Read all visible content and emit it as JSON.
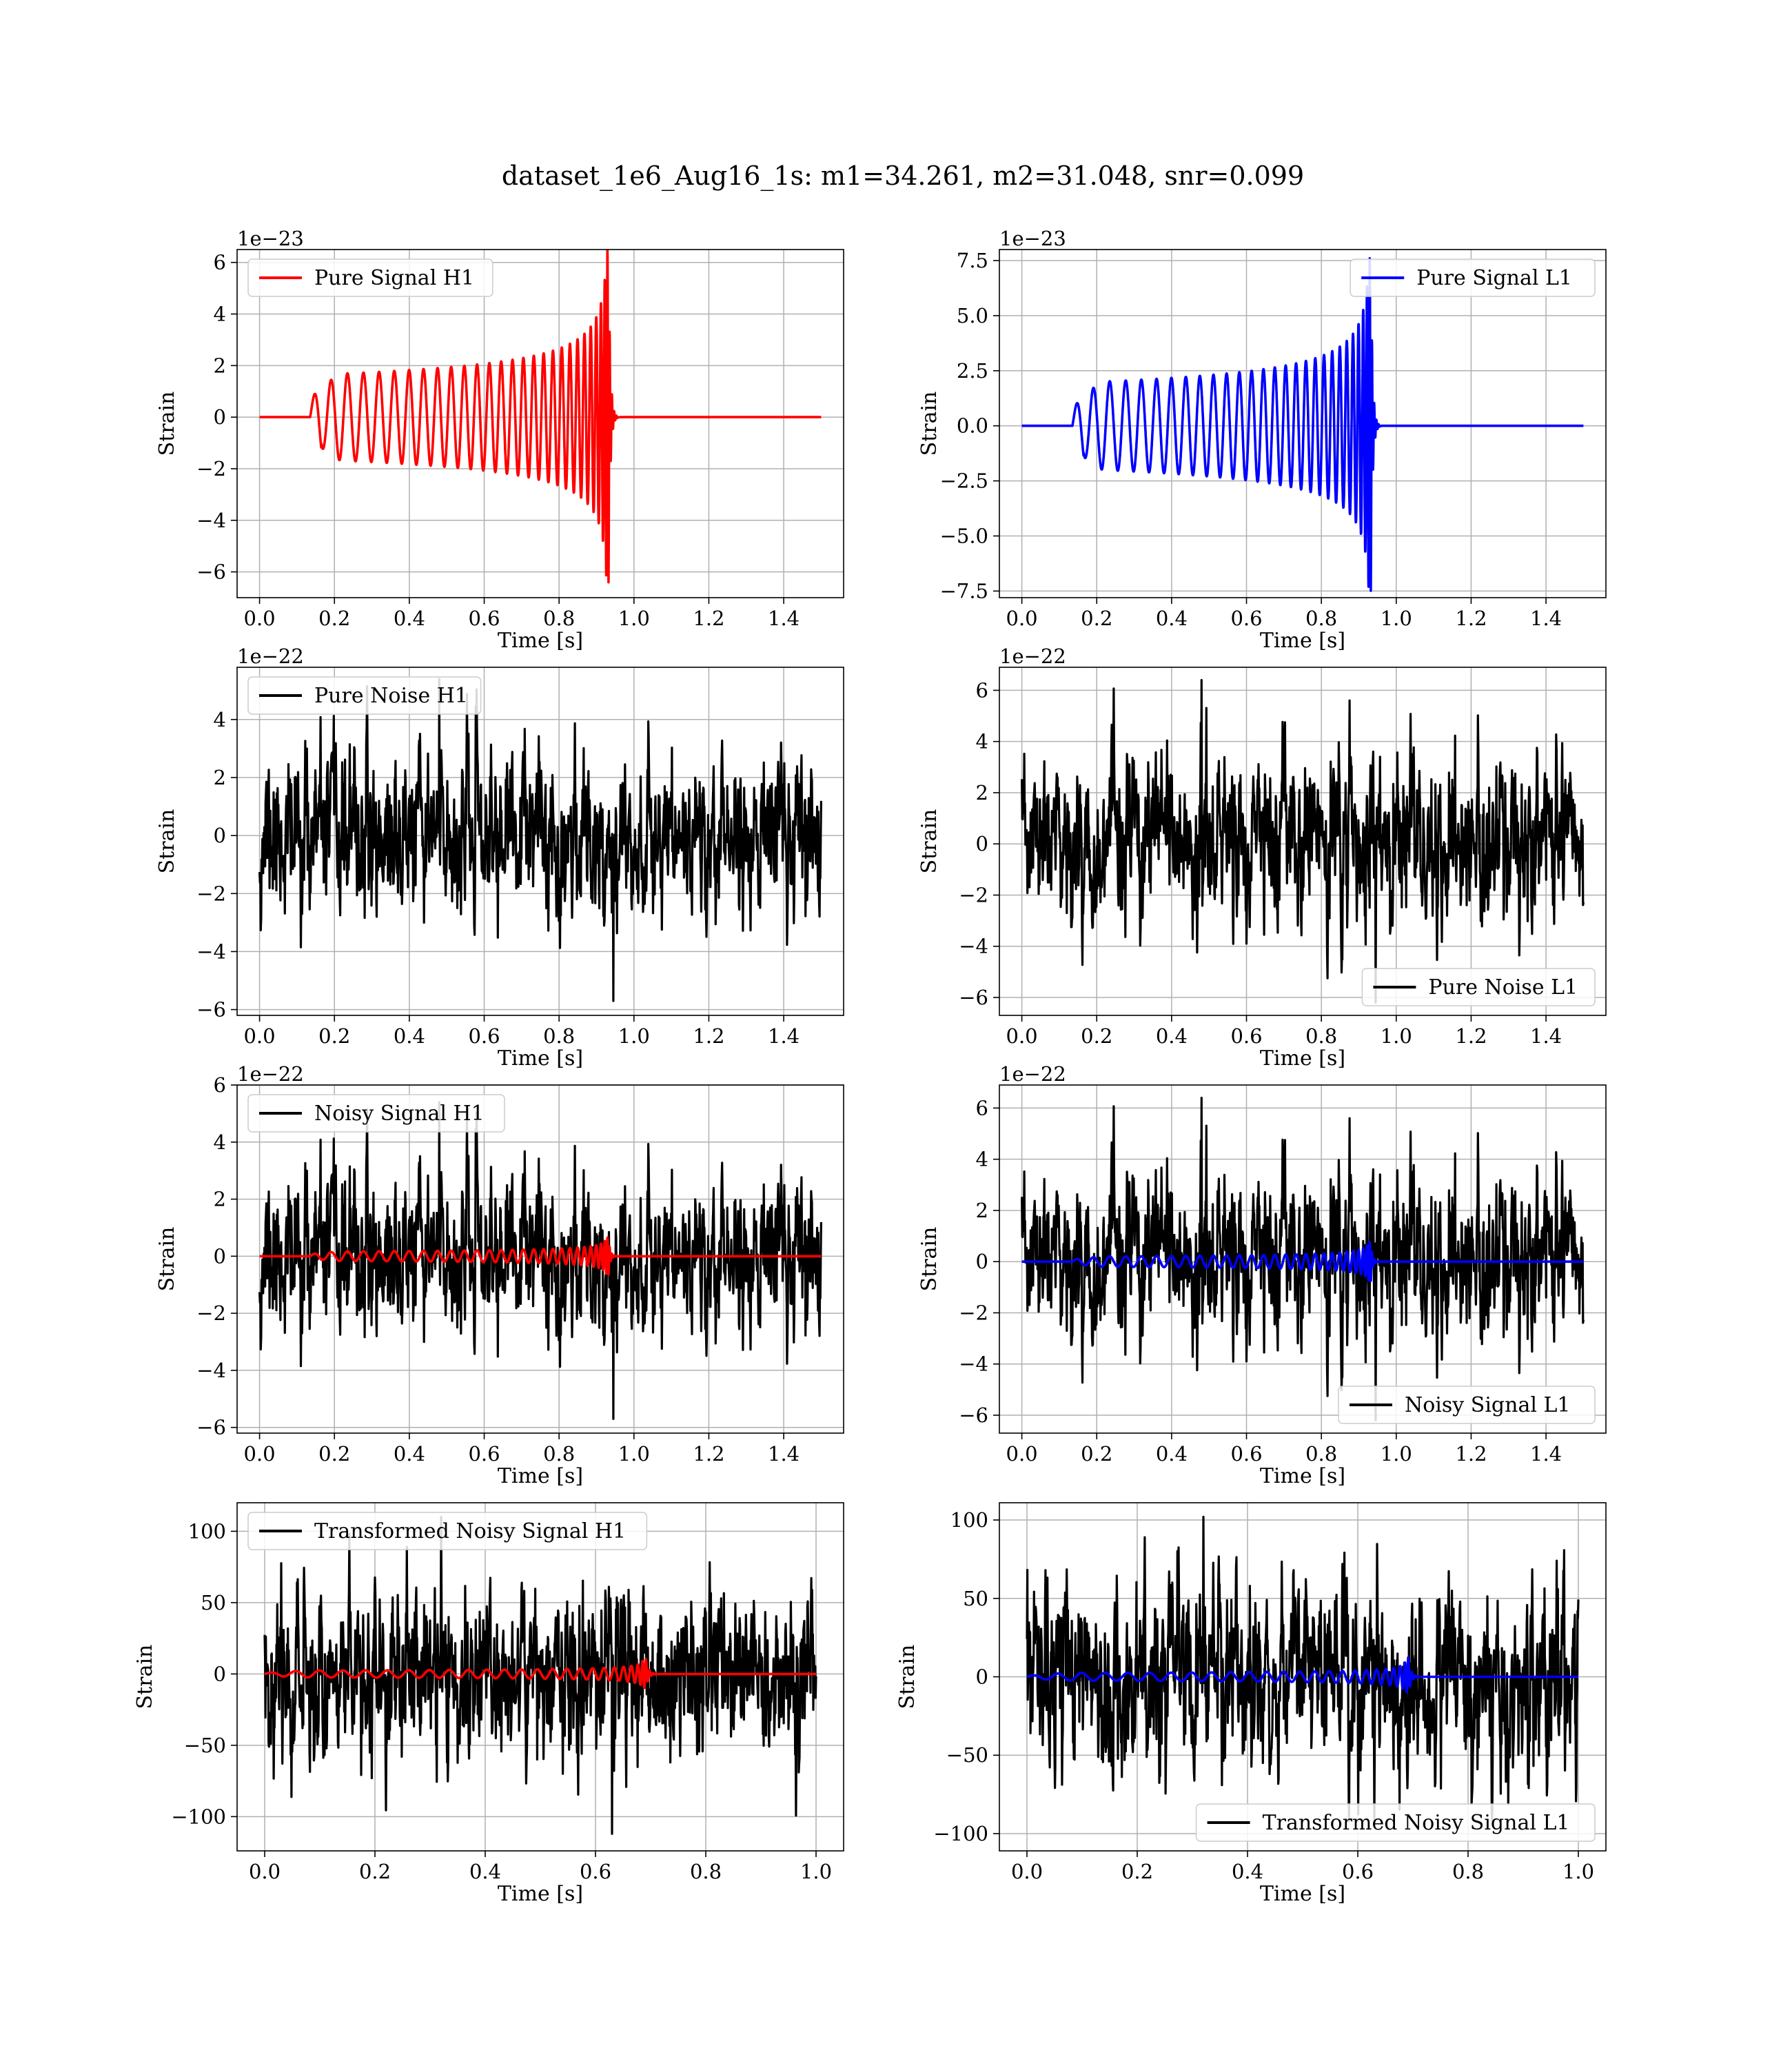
{
  "figure": {
    "title": "dataset_1e6_Aug16_1s: m1=34.261, m2=31.048, snr=0.099"
  },
  "colors": {
    "h1_signal": "#ff0000",
    "l1_signal": "#0000ff",
    "noise": "#000000",
    "grid": "#b0b0b0"
  },
  "chart_data": [
    {
      "type": "line",
      "id": "pure-signal-h1",
      "xlabel": "Time [s]",
      "ylabel": "Strain",
      "offset_text": "1e−23",
      "xlim": [
        -0.06,
        1.56
      ],
      "ylim": [
        -7.0,
        6.5
      ],
      "xticks": [
        0.0,
        0.2,
        0.4,
        0.6,
        0.8,
        1.0,
        1.2,
        1.4
      ],
      "xtick_labels": [
        "0.0",
        "0.2",
        "0.4",
        "0.6",
        "0.8",
        "1.0",
        "1.2",
        "1.4"
      ],
      "yticks": [
        -6,
        -4,
        -2,
        0,
        2,
        4,
        6
      ],
      "ytick_labels": [
        "−6",
        "−4",
        "−2",
        "0",
        "2",
        "4",
        "6"
      ],
      "grid": true,
      "legend_position": "upper-left",
      "series": [
        {
          "name": "Pure Signal H1",
          "color": "#ff0000",
          "kind": "chirp",
          "t0": 0.135,
          "tm": 0.932,
          "t_end": 1.5,
          "start_amp": 1.4,
          "mid_amp": 2.1,
          "peak_amp": 6.5,
          "peak_values": [
            1.4,
            1.7,
            1.9,
            2.0,
            2.05,
            2.1,
            2.1,
            2.1,
            2.1,
            2.15,
            2.2,
            2.3,
            2.4,
            2.5,
            2.6,
            2.8,
            3.0,
            3.3,
            3.8,
            4.5,
            5.8,
            6.0
          ],
          "trough_values": [
            -1.3,
            -1.6,
            -1.8,
            -1.9,
            -2.0,
            -2.0,
            -2.0,
            -2.05,
            -2.1,
            -2.15,
            -2.2,
            -2.3,
            -2.4,
            -2.6,
            -2.8,
            -3.0,
            -3.3,
            -3.8,
            -4.5,
            -5.2,
            -6.5
          ]
        }
      ]
    },
    {
      "type": "line",
      "id": "pure-signal-l1",
      "xlabel": "Time [s]",
      "ylabel": "Strain",
      "offset_text": "1e−23",
      "xlim": [
        -0.06,
        1.56
      ],
      "ylim": [
        -7.8,
        8.0
      ],
      "xticks": [
        0.0,
        0.2,
        0.4,
        0.6,
        0.8,
        1.0,
        1.2,
        1.4
      ],
      "xtick_labels": [
        "0.0",
        "0.2",
        "0.4",
        "0.6",
        "0.8",
        "1.0",
        "1.2",
        "1.4"
      ],
      "yticks": [
        -7.5,
        -5.0,
        -2.5,
        0.0,
        2.5,
        5.0,
        7.5
      ],
      "ytick_labels": [
        "−7.5",
        "−5.0",
        "−2.5",
        "0.0",
        "2.5",
        "5.0",
        "7.5"
      ],
      "grid": true,
      "legend_position": "upper-right",
      "series": [
        {
          "name": "Pure Signal L1",
          "color": "#0000ff",
          "kind": "chirp",
          "t0": 0.135,
          "tm": 0.932,
          "t_end": 1.5,
          "start_amp": 1.6,
          "mid_amp": 2.5,
          "peak_amp": 7.6,
          "peak_values": [
            1.6,
            2.0,
            2.3,
            2.4,
            2.5,
            2.5,
            2.5,
            2.5,
            2.5,
            2.6,
            2.7,
            2.7,
            2.8,
            2.9,
            3.0,
            3.2,
            3.5,
            3.9,
            4.5,
            5.5,
            7.6
          ],
          "trough_values": [
            -1.6,
            -2.0,
            -2.3,
            -2.4,
            -2.5,
            -2.5,
            -2.5,
            -2.5,
            -2.6,
            -2.6,
            -2.7,
            -2.8,
            -2.9,
            -3.1,
            -3.3,
            -3.6,
            -4.0,
            -4.7,
            -5.5,
            -7.0
          ]
        }
      ]
    },
    {
      "type": "line",
      "id": "pure-noise-h1",
      "xlabel": "Time [s]",
      "ylabel": "Strain",
      "offset_text": "1e−22",
      "xlim": [
        -0.06,
        1.56
      ],
      "ylim": [
        -6.2,
        5.8
      ],
      "xticks": [
        0.0,
        0.2,
        0.4,
        0.6,
        0.8,
        1.0,
        1.2,
        1.4
      ],
      "xtick_labels": [
        "0.0",
        "0.2",
        "0.4",
        "0.6",
        "0.8",
        "1.0",
        "1.2",
        "1.4"
      ],
      "yticks": [
        -6,
        -4,
        -2,
        0,
        2,
        4
      ],
      "ytick_labels": [
        "−6",
        "−4",
        "−2",
        "0",
        "2",
        "4"
      ],
      "grid": true,
      "legend_position": "upper-left",
      "series": [
        {
          "name": "Pure Noise H1",
          "color": "#000000",
          "kind": "noise",
          "t_end": 1.5,
          "sigma": 1.3,
          "max": 5.4,
          "min": -5.7,
          "seed": 11
        }
      ]
    },
    {
      "type": "line",
      "id": "pure-noise-l1",
      "xlabel": "Time [s]",
      "ylabel": "Strain",
      "offset_text": "1e−22",
      "xlim": [
        -0.06,
        1.56
      ],
      "ylim": [
        -6.7,
        6.9
      ],
      "xticks": [
        0.0,
        0.2,
        0.4,
        0.6,
        0.8,
        1.0,
        1.2,
        1.4
      ],
      "xtick_labels": [
        "0.0",
        "0.2",
        "0.4",
        "0.6",
        "0.8",
        "1.0",
        "1.2",
        "1.4"
      ],
      "yticks": [
        -6,
        -4,
        -2,
        0,
        2,
        4,
        6
      ],
      "ytick_labels": [
        "−6",
        "−4",
        "−2",
        "0",
        "2",
        "4",
        "6"
      ],
      "grid": true,
      "legend_position": "lower-right",
      "series": [
        {
          "name": "Pure Noise L1",
          "color": "#000000",
          "kind": "noise",
          "t_end": 1.5,
          "sigma": 1.5,
          "max": 6.4,
          "min": -6.2,
          "seed": 23
        }
      ]
    },
    {
      "type": "line",
      "id": "noisy-signal-h1",
      "xlabel": "Time [s]",
      "ylabel": "Strain",
      "offset_text": "1e−22",
      "xlim": [
        -0.06,
        1.56
      ],
      "ylim": [
        -6.2,
        6.0
      ],
      "xticks": [
        0.0,
        0.2,
        0.4,
        0.6,
        0.8,
        1.0,
        1.2,
        1.4
      ],
      "xtick_labels": [
        "0.0",
        "0.2",
        "0.4",
        "0.6",
        "0.8",
        "1.0",
        "1.2",
        "1.4"
      ],
      "yticks": [
        -6,
        -4,
        -2,
        0,
        2,
        4,
        6
      ],
      "ytick_labels": [
        "−6",
        "−4",
        "−2",
        "0",
        "2",
        "4",
        "6"
      ],
      "grid": true,
      "legend_position": "upper-left",
      "series": [
        {
          "name": "Noisy Signal H1",
          "color": "#000000",
          "kind": "noise",
          "t_end": 1.5,
          "sigma": 1.3,
          "max": 5.4,
          "min": -5.7,
          "seed": 11
        },
        {
          "name": "",
          "color": "#ff0000",
          "kind": "chirp",
          "t0": 0.135,
          "tm": 0.932,
          "t_end": 1.5,
          "start_amp": 0.14,
          "mid_amp": 0.21,
          "peak_amp": 0.65
        }
      ]
    },
    {
      "type": "line",
      "id": "noisy-signal-l1",
      "xlabel": "Time [s]",
      "ylabel": "Strain",
      "offset_text": "1e−22",
      "xlim": [
        -0.06,
        1.56
      ],
      "ylim": [
        -6.7,
        6.9
      ],
      "xticks": [
        0.0,
        0.2,
        0.4,
        0.6,
        0.8,
        1.0,
        1.2,
        1.4
      ],
      "xtick_labels": [
        "0.0",
        "0.2",
        "0.4",
        "0.6",
        "0.8",
        "1.0",
        "1.2",
        "1.4"
      ],
      "yticks": [
        -6,
        -4,
        -2,
        0,
        2,
        4,
        6
      ],
      "ytick_labels": [
        "−6",
        "−4",
        "−2",
        "0",
        "2",
        "4",
        "6"
      ],
      "grid": true,
      "legend_position": "lower-right",
      "series": [
        {
          "name": "Noisy Signal L1",
          "color": "#000000",
          "kind": "noise",
          "t_end": 1.5,
          "sigma": 1.5,
          "max": 6.4,
          "min": -6.2,
          "seed": 23
        },
        {
          "name": "",
          "color": "#0000ff",
          "kind": "chirp",
          "t0": 0.135,
          "tm": 0.932,
          "t_end": 1.5,
          "start_amp": 0.16,
          "mid_amp": 0.25,
          "peak_amp": 0.76
        }
      ]
    },
    {
      "type": "line",
      "id": "transformed-noisy-signal-h1",
      "xlabel": "Time [s]",
      "ylabel": "Strain",
      "offset_text": "",
      "xlim": [
        -0.05,
        1.05
      ],
      "ylim": [
        -124,
        120
      ],
      "xticks": [
        0.0,
        0.2,
        0.4,
        0.6,
        0.8,
        1.0
      ],
      "xtick_labels": [
        "0.0",
        "0.2",
        "0.4",
        "0.6",
        "0.8",
        "1.0"
      ],
      "yticks": [
        -100,
        -50,
        0,
        50,
        100
      ],
      "ytick_labels": [
        "−100",
        "−50",
        "0",
        "50",
        "100"
      ],
      "grid": true,
      "legend_position": "upper-left",
      "series": [
        {
          "name": "Transformed Noisy Signal H1",
          "color": "#000000",
          "kind": "noise",
          "t_end": 1.0,
          "sigma": 28,
          "max": 110,
          "min": -112,
          "seed": 37
        },
        {
          "name": "",
          "color": "#ff0000",
          "kind": "chirp",
          "t0": 0.0,
          "tm": 0.69,
          "t_end": 1.0,
          "start_amp": 1.5,
          "mid_amp": 3,
          "peak_amp": 15
        }
      ]
    },
    {
      "type": "line",
      "id": "transformed-noisy-signal-l1",
      "xlabel": "Time [s]",
      "ylabel": "Strain",
      "offset_text": "",
      "xlim": [
        -0.05,
        1.05
      ],
      "ylim": [
        -111,
        111
      ],
      "xticks": [
        0.0,
        0.2,
        0.4,
        0.6,
        0.8,
        1.0
      ],
      "xtick_labels": [
        "0.0",
        "0.2",
        "0.4",
        "0.6",
        "0.8",
        "1.0"
      ],
      "yticks": [
        -100,
        -50,
        0,
        50,
        100
      ],
      "ytick_labels": [
        "−100",
        "−50",
        "0",
        "50",
        "100"
      ],
      "grid": true,
      "legend_position": "lower-right",
      "series": [
        {
          "name": "Transformed Noisy Signal L1",
          "color": "#000000",
          "kind": "noise",
          "t_end": 1.0,
          "sigma": 28,
          "max": 102,
          "min": -92,
          "seed": 53
        },
        {
          "name": "",
          "color": "#0000ff",
          "kind": "chirp",
          "t0": 0.0,
          "tm": 0.69,
          "t_end": 1.0,
          "start_amp": 1.5,
          "mid_amp": 3,
          "peak_amp": 18
        }
      ]
    }
  ]
}
